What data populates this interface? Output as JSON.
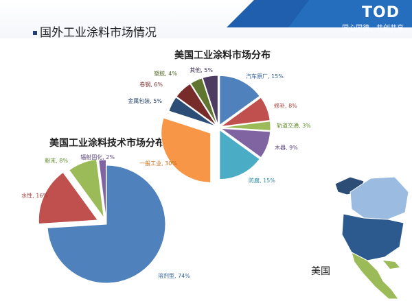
{
  "header": {
    "page_title": "国外工业涂料市场情况",
    "logo": "TOD",
    "slogan": "同心同德，共创共享"
  },
  "map": {
    "label": "美国"
  },
  "chart_data": [
    {
      "type": "pie",
      "title": "美国工业涂料市场分布",
      "categories": [
        "汽车原厂",
        "修补",
        "轨道交通",
        "木器",
        "防腐",
        "一般工业",
        "金属包装",
        "卷钢",
        "塑胶",
        "其他"
      ],
      "values": [
        15,
        8,
        3,
        9,
        15,
        30,
        5,
        6,
        4,
        5
      ],
      "labels": [
        "汽车原厂, 15%",
        "修补, 8%",
        "轨道交通, 3%",
        "木器, 9%",
        "防腐, 15%",
        "一般工业, 30%",
        "金属包装, 5%",
        "卷钢, 6%",
        "塑胶, 4%",
        "其他, 5%"
      ],
      "colors": [
        "#4f81bd",
        "#c0504d",
        "#9bbb59",
        "#8064a2",
        "#4bacc6",
        "#f79646",
        "#2c4d75",
        "#772c2a",
        "#5f7530",
        "#4d3b62"
      ],
      "label_colors": [
        "#2f5f9e",
        "#a33b39",
        "#5f8a2a",
        "#5c4582",
        "#2a8ca6",
        "#c8701a",
        "#1f3f66",
        "#772c2a",
        "#4b6420",
        "#3d2f52"
      ]
    },
    {
      "type": "pie",
      "title": "美国工业涂料技术市场分布",
      "categories": [
        "溶剂型",
        "水性",
        "粉末",
        "辐射固化"
      ],
      "values": [
        74,
        16,
        8,
        2
      ],
      "labels": [
        "溶剂型, 74%",
        "水性, 16%",
        "粉末, 8%",
        "辐射固化, 2%"
      ],
      "colors": [
        "#4f81bd",
        "#c0504d",
        "#9bbb59",
        "#8064a2"
      ],
      "label_colors": [
        "#2f5f9e",
        "#a33b39",
        "#5f8a2a",
        "#5c4582"
      ]
    }
  ]
}
